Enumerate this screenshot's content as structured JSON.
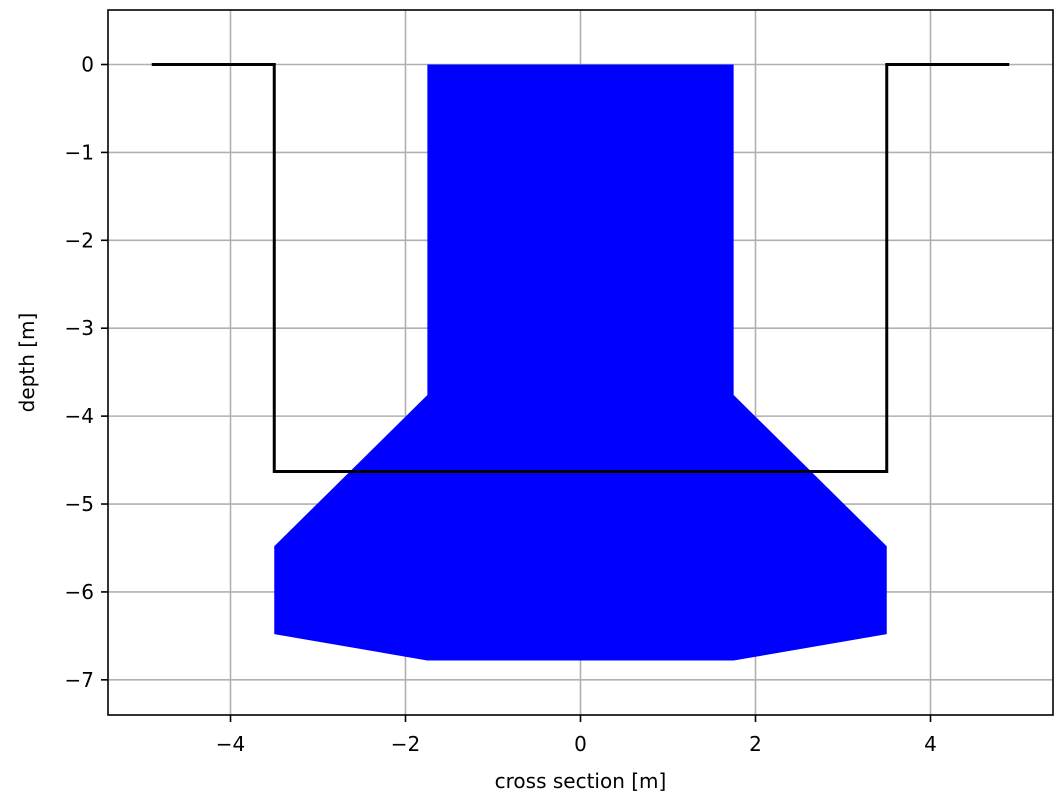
{
  "chart_data": {
    "type": "area",
    "title": "",
    "xlabel": "cross section [m]",
    "ylabel": "depth [m]",
    "xlim": [
      -5.4,
      5.4
    ],
    "ylim": [
      -7.4,
      0.62
    ],
    "xticks": [
      -4,
      -2,
      0,
      2,
      4
    ],
    "yticks": [
      0,
      -1,
      -2,
      -3,
      -4,
      -5,
      -6,
      -7
    ],
    "xtick_labels": [
      "−4",
      "−2",
      "0",
      "2",
      "4"
    ],
    "ytick_labels": [
      "0",
      "−1",
      "−2",
      "−3",
      "−4",
      "−5",
      "−6",
      "−7"
    ],
    "grid": true,
    "legend": "none",
    "series": [
      {
        "kind": "filled-polygon",
        "color": "#0000ff",
        "x": [
          -1.75,
          1.75,
          1.75,
          3.5,
          3.5,
          1.75,
          -1.75,
          -3.5,
          -3.5,
          -1.75
        ],
        "y": [
          0,
          0,
          -3.76,
          -5.48,
          -6.48,
          -6.78,
          -6.78,
          -6.48,
          -5.48,
          -3.76
        ]
      },
      {
        "kind": "line",
        "color": "#000000",
        "x": [
          -4.9,
          -3.5,
          -3.5,
          3.5,
          3.5,
          4.9
        ],
        "y": [
          0,
          0,
          -4.63,
          -4.63,
          0,
          0
        ]
      }
    ]
  }
}
